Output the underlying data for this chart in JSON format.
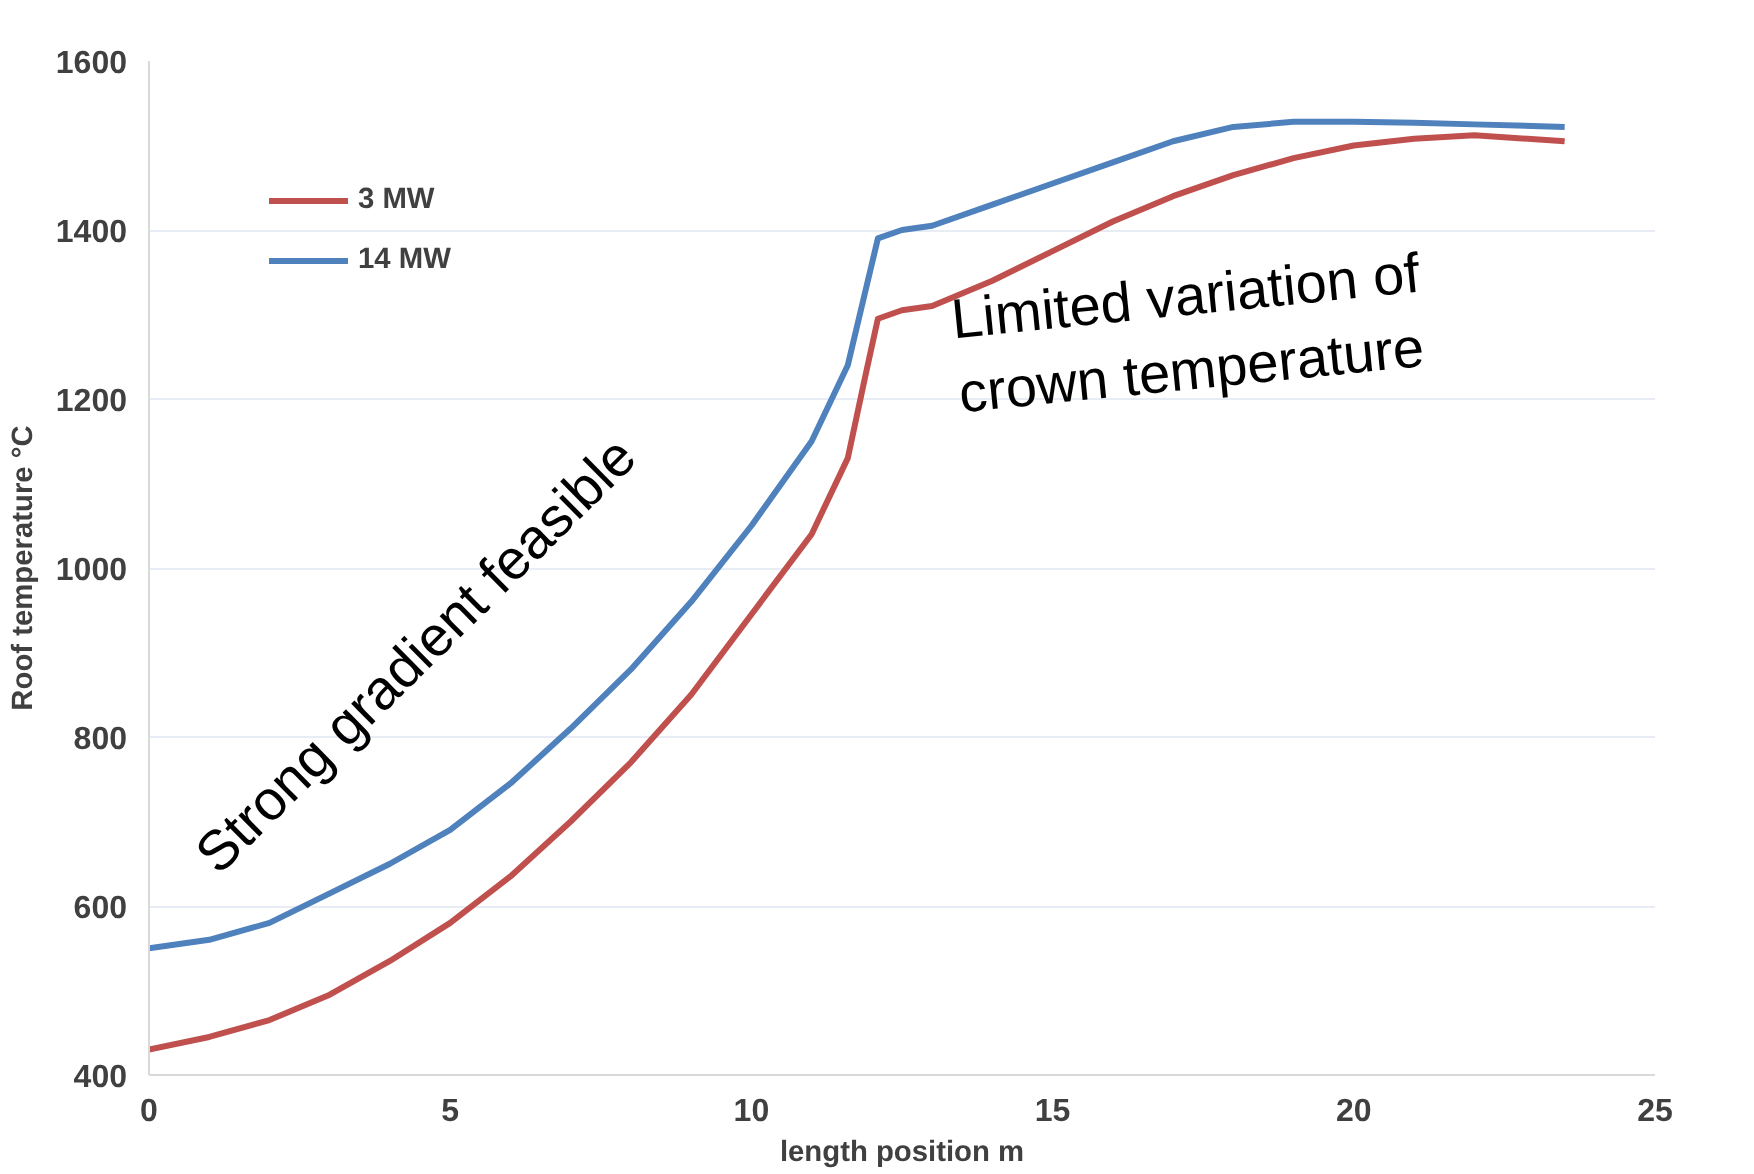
{
  "chart_data": {
    "type": "line",
    "xlabel": "length position m",
    "ylabel": "Roof temperature °C",
    "x": [
      0,
      1,
      2,
      3,
      4,
      5,
      6,
      7,
      8,
      9,
      10,
      11,
      11.6,
      11.9,
      12.1,
      12.5,
      13,
      14,
      15,
      16,
      17,
      18,
      19,
      20,
      21,
      22,
      23.5
    ],
    "series": [
      {
        "name": "3 MW",
        "color": "#c0504d",
        "values": [
          430,
          445,
          465,
          495,
          535,
          580,
          635,
          700,
          770,
          850,
          945,
          1040,
          1130,
          1230,
          1295,
          1305,
          1310,
          1340,
          1375,
          1410,
          1440,
          1465,
          1485,
          1500,
          1508,
          1512,
          1505
        ]
      },
      {
        "name": "14 MW",
        "color": "#4f81bd",
        "values": [
          550,
          560,
          580,
          615,
          650,
          690,
          745,
          810,
          880,
          960,
          1050,
          1150,
          1240,
          1330,
          1390,
          1400,
          1405,
          1430,
          1455,
          1480,
          1505,
          1522,
          1528,
          1528,
          1527,
          1525,
          1522
        ]
      }
    ],
    "xlim": [
      0,
      25
    ],
    "xticks": [
      0,
      5,
      10,
      15,
      20,
      25
    ],
    "ylim": [
      400,
      1600
    ],
    "yticks": [
      400,
      600,
      800,
      1000,
      1200,
      1400,
      1600
    ],
    "grid": "y",
    "legend": "top left",
    "marker": "none",
    "line_style": "solid",
    "annotations": [
      "Strong gradient feasible",
      "Limited variation of\ncrown temperature"
    ]
  }
}
